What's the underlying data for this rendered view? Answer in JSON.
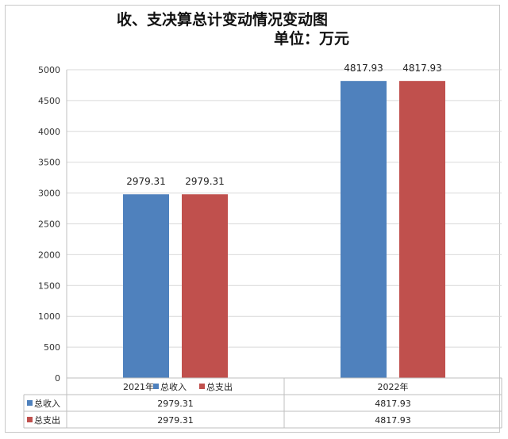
{
  "chart_data": {
    "type": "bar",
    "title": "收、支决算总计变动情况变动图",
    "subtitle": "单位：万元",
    "categories": [
      "2021年",
      "2022年"
    ],
    "series": [
      {
        "name": "总收入",
        "values": [
          2979.31,
          4817.93
        ],
        "color": "#4F81BD"
      },
      {
        "name": "总支出",
        "values": [
          2979.31,
          4817.93
        ],
        "color": "#C0504D"
      }
    ],
    "value_labels": [
      [
        "2979.31",
        "4817.93"
      ],
      [
        "2979.31",
        "4817.93"
      ]
    ],
    "y_ticks": [
      "0",
      "500",
      "1000",
      "1500",
      "2000",
      "2500",
      "3000",
      "3500",
      "4000",
      "4500",
      "5000"
    ],
    "ylim": [
      0,
      5000
    ],
    "grid": true,
    "legend": "inline-in-data-table"
  }
}
